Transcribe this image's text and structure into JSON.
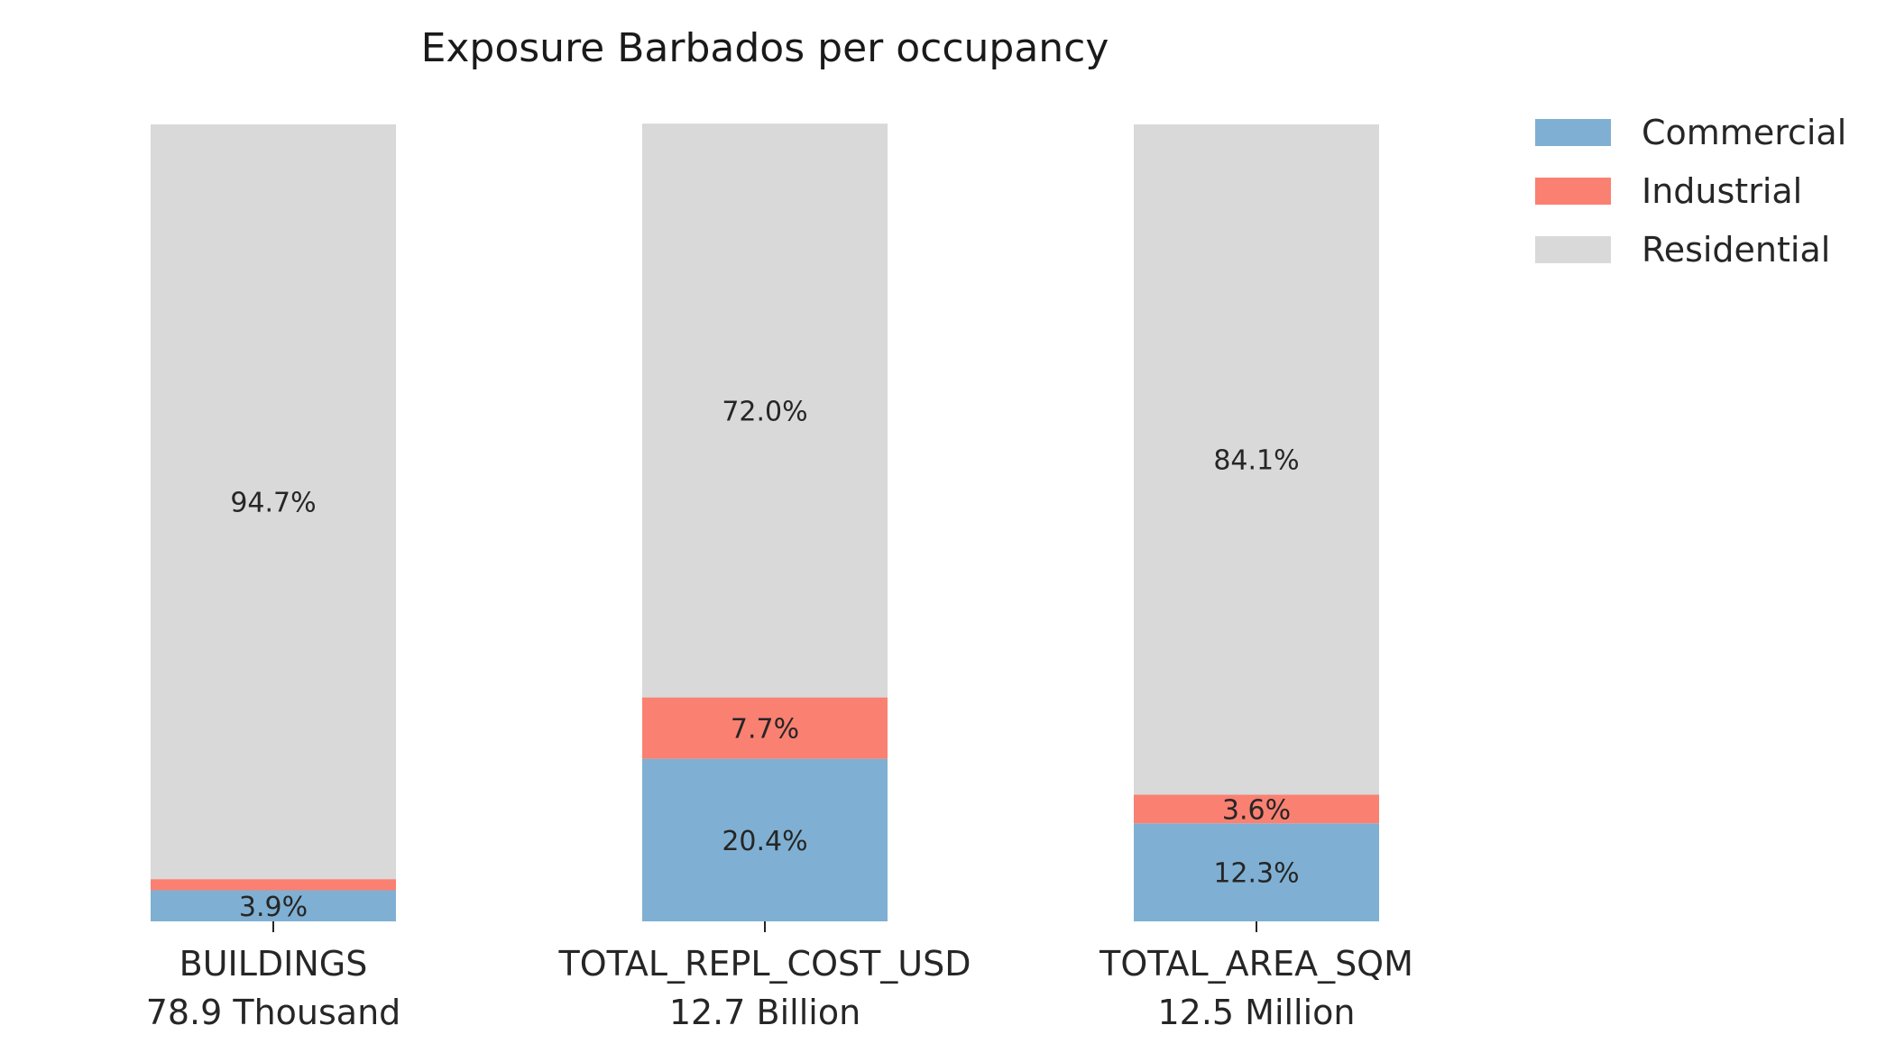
{
  "chart_data": {
    "type": "bar",
    "stacked": true,
    "percent_stacked": true,
    "title": "Exposure Barbados per occupancy",
    "xlabel": "",
    "ylabel": "",
    "ylim": [
      0,
      100
    ],
    "grid": false,
    "legend": {
      "placement": "top-right"
    },
    "categories": [
      "BUILDINGS",
      "TOTAL_REPL_COST_USD",
      "TOTAL_AREA_SQM"
    ],
    "category_totals": [
      "78.9 Thousand",
      "12.7 Billion",
      "12.5 Million"
    ],
    "series": [
      {
        "name": "Commercial",
        "color": "#7fb0d3",
        "values": [
          3.9,
          20.4,
          12.3
        ],
        "labels": [
          "3.9%",
          "20.4%",
          "12.3%"
        ]
      },
      {
        "name": "Industrial",
        "color": "#fa8072",
        "values": [
          1.4,
          7.7,
          3.6
        ],
        "labels": [
          "",
          "7.7%",
          "3.6%"
        ]
      },
      {
        "name": "Residential",
        "color": "#d9d9d9",
        "values": [
          94.7,
          72.0,
          84.1
        ],
        "labels": [
          "94.7%",
          "72.0%",
          "84.1%"
        ]
      }
    ]
  }
}
